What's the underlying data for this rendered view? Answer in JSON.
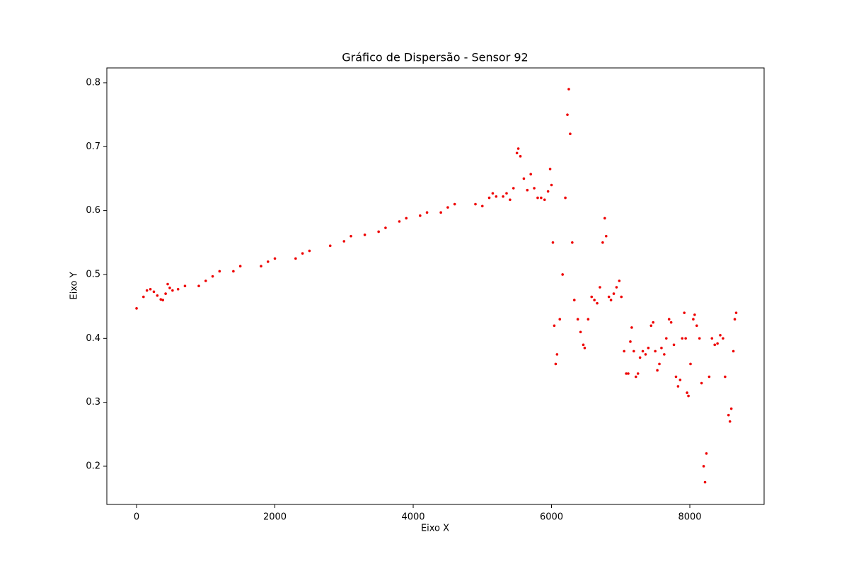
{
  "chart_data": {
    "type": "scatter",
    "title": "Gráfico de Dispersão - Sensor 92",
    "x_label": "Eixo X",
    "y_label": "Eixo Y",
    "color": "#ee0000",
    "grid": false,
    "xlim": [
      -430,
      9074
    ],
    "ylim": [
      0.1402,
      0.8232
    ],
    "xticks": [
      0,
      2000,
      4000,
      6000,
      8000
    ],
    "yticks": [
      0.2,
      0.3,
      0.4,
      0.5,
      0.6,
      0.7,
      0.8
    ],
    "series": [
      {
        "name": "Sensor 92",
        "color": "#ee0000",
        "x": [
          0,
          100,
          150,
          200,
          250,
          300,
          350,
          380,
          420,
          450,
          480,
          520,
          600,
          700,
          900,
          1000,
          1100,
          1200,
          1400,
          1500,
          1800,
          1900,
          2000,
          2300,
          2400,
          2500,
          2800,
          3000,
          3100,
          3300,
          3500,
          3600,
          3800,
          3900,
          4100,
          4200,
          4400,
          4500,
          4600,
          4900,
          5000,
          5100,
          5150,
          5200,
          5300,
          5350,
          5400,
          5450,
          5500,
          5520,
          5550,
          5600,
          5650,
          5700,
          5750,
          5800,
          5850,
          5900,
          5950,
          5980,
          6000,
          6020,
          6040,
          6060,
          6080,
          6120,
          6160,
          6200,
          6230,
          6250,
          6270,
          6300,
          6330,
          6380,
          6420,
          6460,
          6480,
          6530,
          6580,
          6620,
          6660,
          6700,
          6740,
          6770,
          6790,
          6830,
          6860,
          6900,
          6940,
          6980,
          7010,
          7050,
          7080,
          7110,
          7140,
          7160,
          7190,
          7220,
          7250,
          7280,
          7320,
          7360,
          7400,
          7440,
          7470,
          7500,
          7530,
          7560,
          7590,
          7630,
          7660,
          7700,
          7730,
          7770,
          7800,
          7830,
          7860,
          7890,
          7920,
          7940,
          7960,
          7980,
          8010,
          8050,
          8070,
          8100,
          8140,
          8170,
          8200,
          8220,
          8240,
          8280,
          8320,
          8360,
          8400,
          8440,
          8480,
          8510,
          8560,
          8580,
          8600,
          8630,
          8650,
          8670
        ],
        "values": [
          0.447,
          0.465,
          0.475,
          0.477,
          0.473,
          0.467,
          0.461,
          0.46,
          0.47,
          0.485,
          0.479,
          0.475,
          0.477,
          0.482,
          0.482,
          0.49,
          0.497,
          0.505,
          0.505,
          0.513,
          0.513,
          0.52,
          0.525,
          0.525,
          0.533,
          0.537,
          0.545,
          0.552,
          0.56,
          0.562,
          0.567,
          0.573,
          0.583,
          0.588,
          0.592,
          0.597,
          0.597,
          0.605,
          0.61,
          0.61,
          0.607,
          0.62,
          0.627,
          0.622,
          0.622,
          0.627,
          0.617,
          0.635,
          0.69,
          0.697,
          0.685,
          0.65,
          0.632,
          0.657,
          0.635,
          0.62,
          0.62,
          0.617,
          0.63,
          0.665,
          0.64,
          0.55,
          0.42,
          0.36,
          0.375,
          0.43,
          0.5,
          0.62,
          0.75,
          0.79,
          0.72,
          0.55,
          0.46,
          0.43,
          0.41,
          0.39,
          0.385,
          0.43,
          0.465,
          0.46,
          0.455,
          0.48,
          0.55,
          0.588,
          0.56,
          0.465,
          0.46,
          0.47,
          0.48,
          0.49,
          0.465,
          0.38,
          0.345,
          0.345,
          0.395,
          0.417,
          0.38,
          0.34,
          0.345,
          0.37,
          0.38,
          0.375,
          0.385,
          0.42,
          0.425,
          0.38,
          0.35,
          0.36,
          0.385,
          0.375,
          0.4,
          0.43,
          0.425,
          0.39,
          0.34,
          0.325,
          0.335,
          0.4,
          0.44,
          0.4,
          0.315,
          0.31,
          0.36,
          0.43,
          0.437,
          0.42,
          0.4,
          0.33,
          0.2,
          0.175,
          0.22,
          0.34,
          0.4,
          0.39,
          0.392,
          0.405,
          0.4,
          0.34,
          0.28,
          0.27,
          0.29,
          0.38,
          0.43,
          0.44
        ]
      }
    ]
  }
}
